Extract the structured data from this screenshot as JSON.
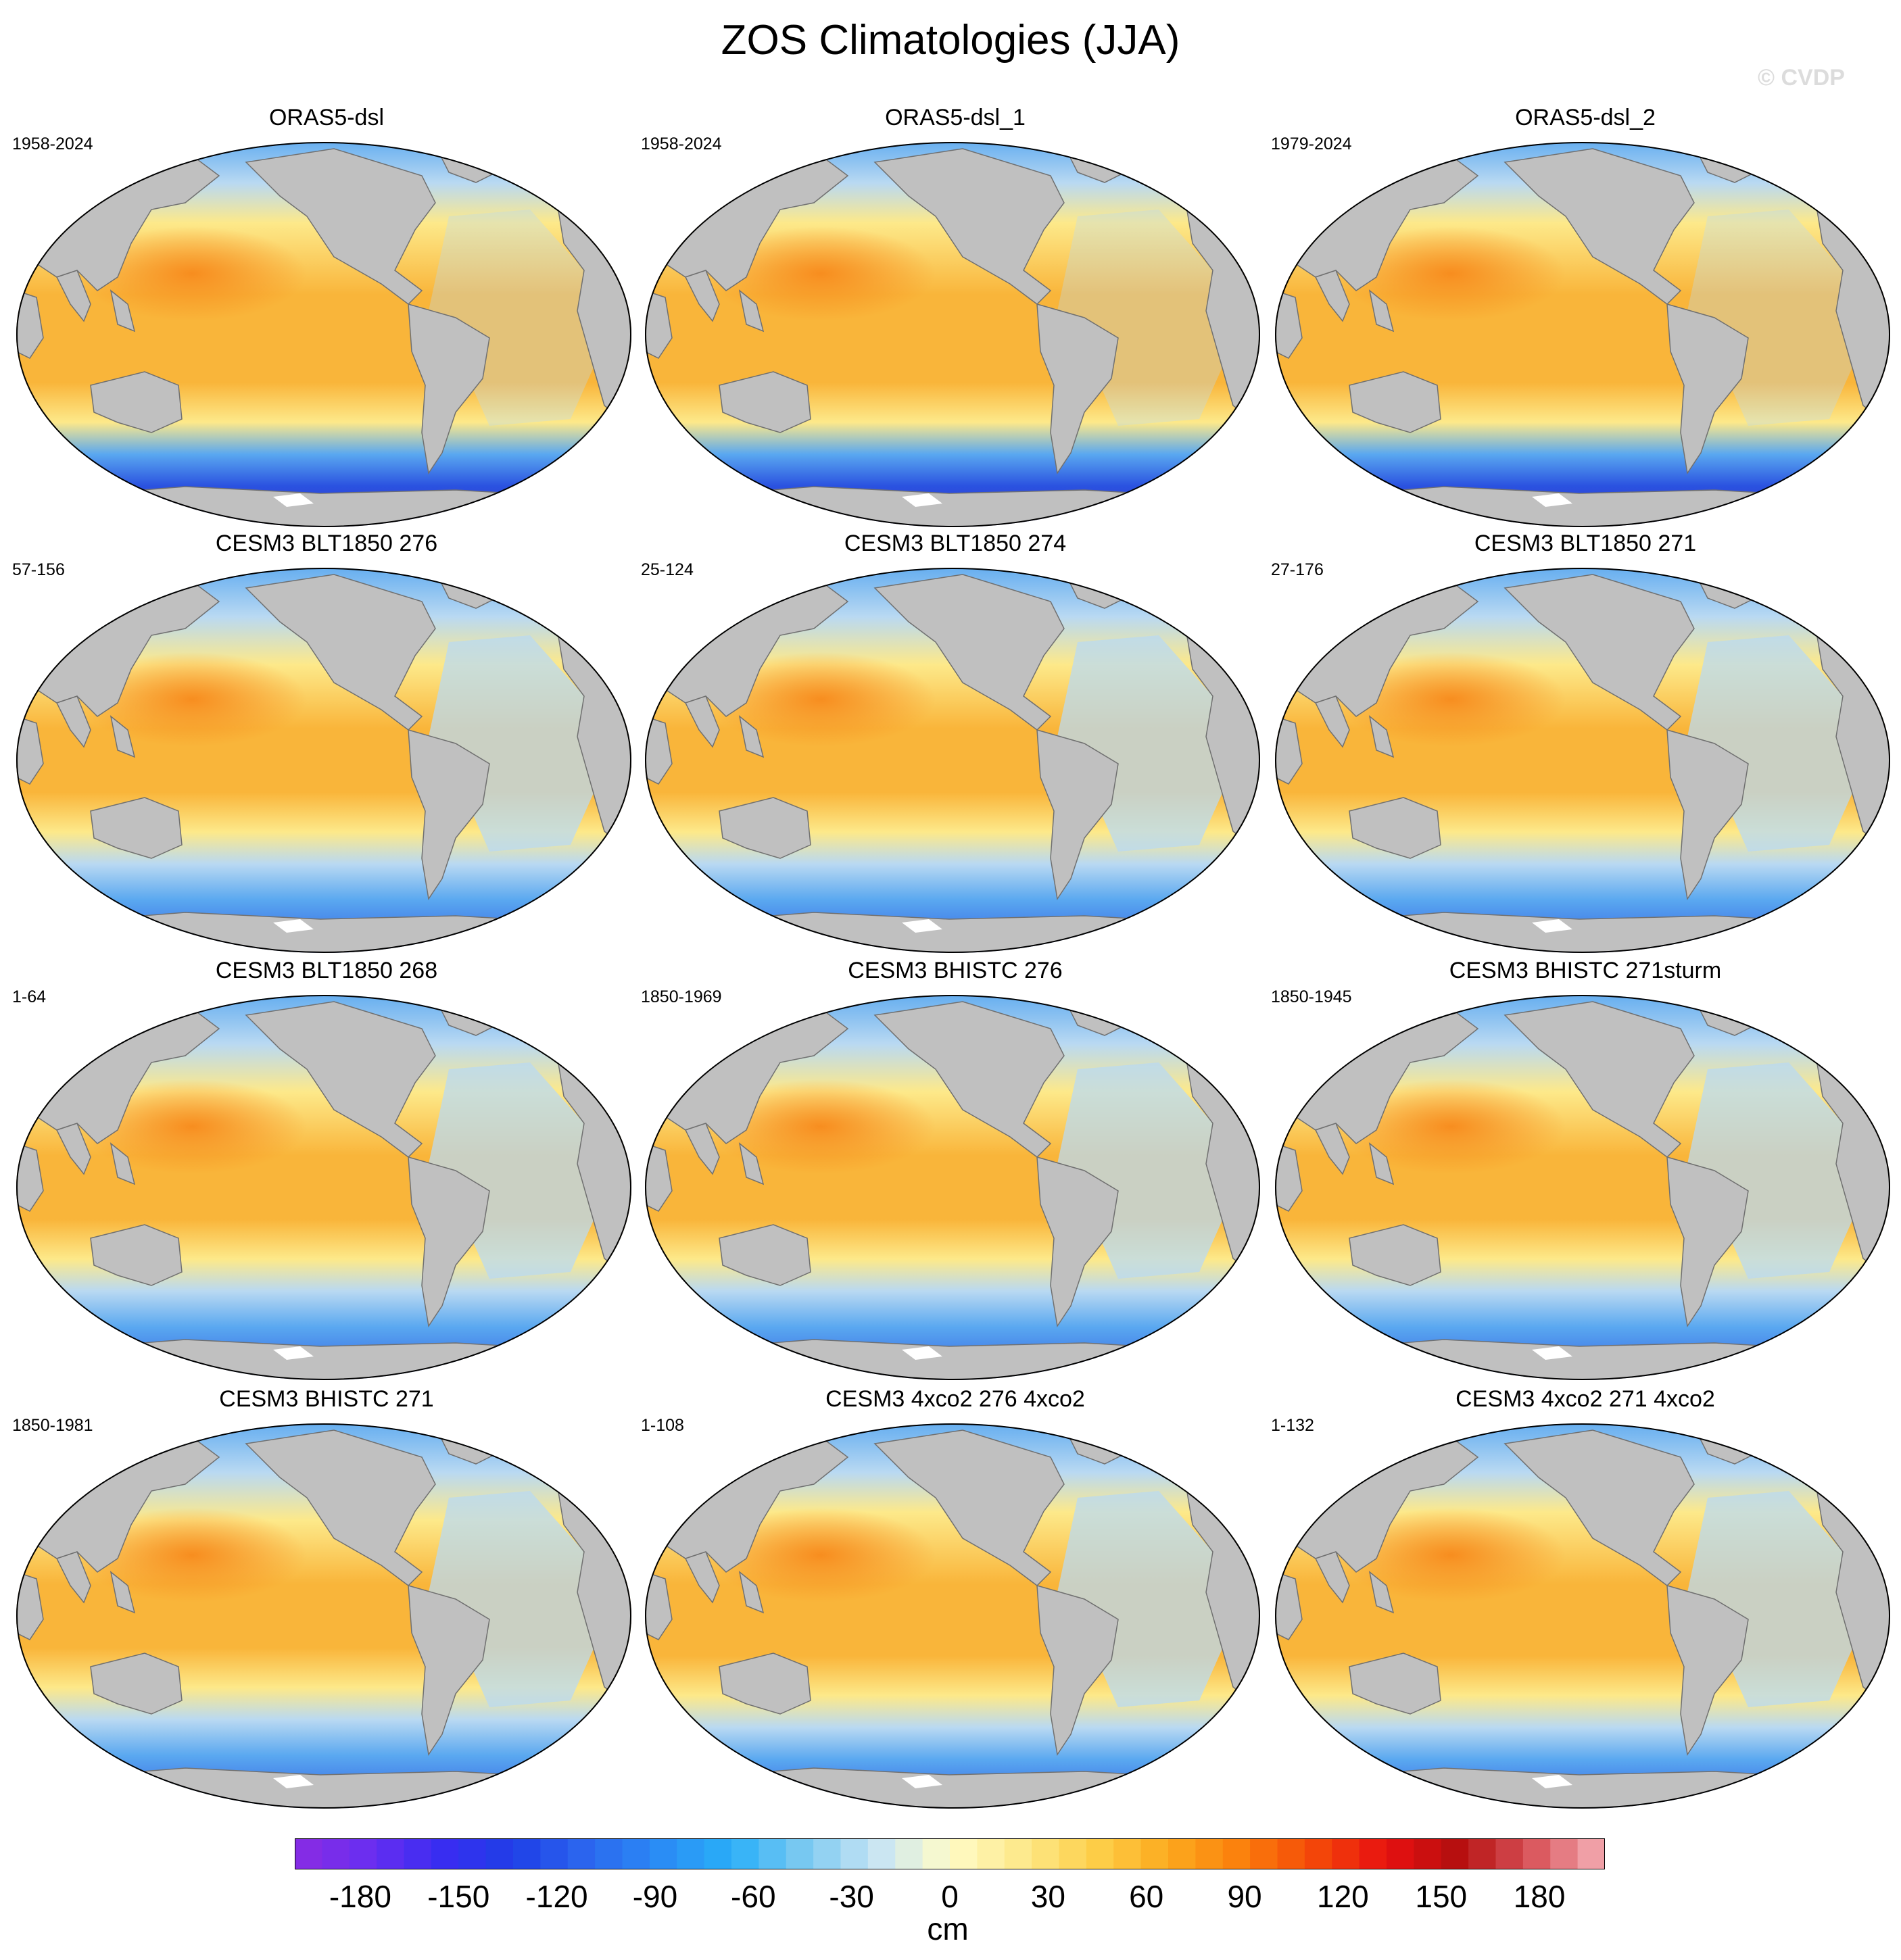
{
  "title": "ZOS Climatologies (JJA)",
  "watermark": "© CVDP",
  "panels": [
    {
      "title": "ORAS5-dsl",
      "period": "1958-2024",
      "variant": "obs"
    },
    {
      "title": "ORAS5-dsl_1",
      "period": "1958-2024",
      "variant": "obs"
    },
    {
      "title": "ORAS5-dsl_2",
      "period": "1979-2024",
      "variant": "obs"
    },
    {
      "title": "CESM3 BLT1850 276",
      "period": "57-156",
      "variant": "model"
    },
    {
      "title": "CESM3 BLT1850 274",
      "period": "25-124",
      "variant": "model"
    },
    {
      "title": "CESM3 BLT1850 271",
      "period": "27-176",
      "variant": "model"
    },
    {
      "title": "CESM3 BLT1850 268",
      "period": "1-64",
      "variant": "model"
    },
    {
      "title": "CESM3 BHISTC 276",
      "period": "1850-1969",
      "variant": "model"
    },
    {
      "title": "CESM3 BHISTC 271sturm",
      "period": "1850-1945",
      "variant": "model"
    },
    {
      "title": "CESM3 BHISTC 271",
      "period": "1850-1981",
      "variant": "model"
    },
    {
      "title": "CESM3 4xco2 276 4xco2",
      "period": "1-108",
      "variant": "warm"
    },
    {
      "title": "CESM3 4xco2 271 4xco2",
      "period": "1-132",
      "variant": "warm"
    }
  ],
  "colorbar": {
    "units": "cm",
    "min": -200,
    "max": 200,
    "tick_labels": [
      "-180",
      "-150",
      "-120",
      "-90",
      "-60",
      "-30",
      "0",
      "30",
      "60",
      "90",
      "120",
      "150",
      "180"
    ],
    "tick_values": [
      -180,
      -150,
      -120,
      -90,
      -60,
      -30,
      0,
      30,
      60,
      90,
      120,
      150,
      180
    ],
    "colors": [
      "#8a2be2",
      "#6a2ef0",
      "#3a2cf2",
      "#1f3fe6",
      "#2c66ee",
      "#2a8bf5",
      "#29aff8",
      "#7ccaf0",
      "#c7e4f5",
      "#fffcc8",
      "#fde98a",
      "#fdcf4a",
      "#fcaa1e",
      "#fb7f0c",
      "#f44908",
      "#e81010",
      "#b40f0f",
      "#d9545a",
      "#f5b0b8"
    ]
  },
  "map_colors": {
    "land": "#c0c0c0",
    "coast": "#707070",
    "ocean_warm": "#f9b53a",
    "ocean_pool": "#f78a1c",
    "ocean_light": "#fde98a",
    "ocean_cool": "#b9d9f2",
    "ocean_blue": "#5aa8f0",
    "ocean_deep": "#2a52e0",
    "ocean_abyss": "#3a2cc9"
  }
}
